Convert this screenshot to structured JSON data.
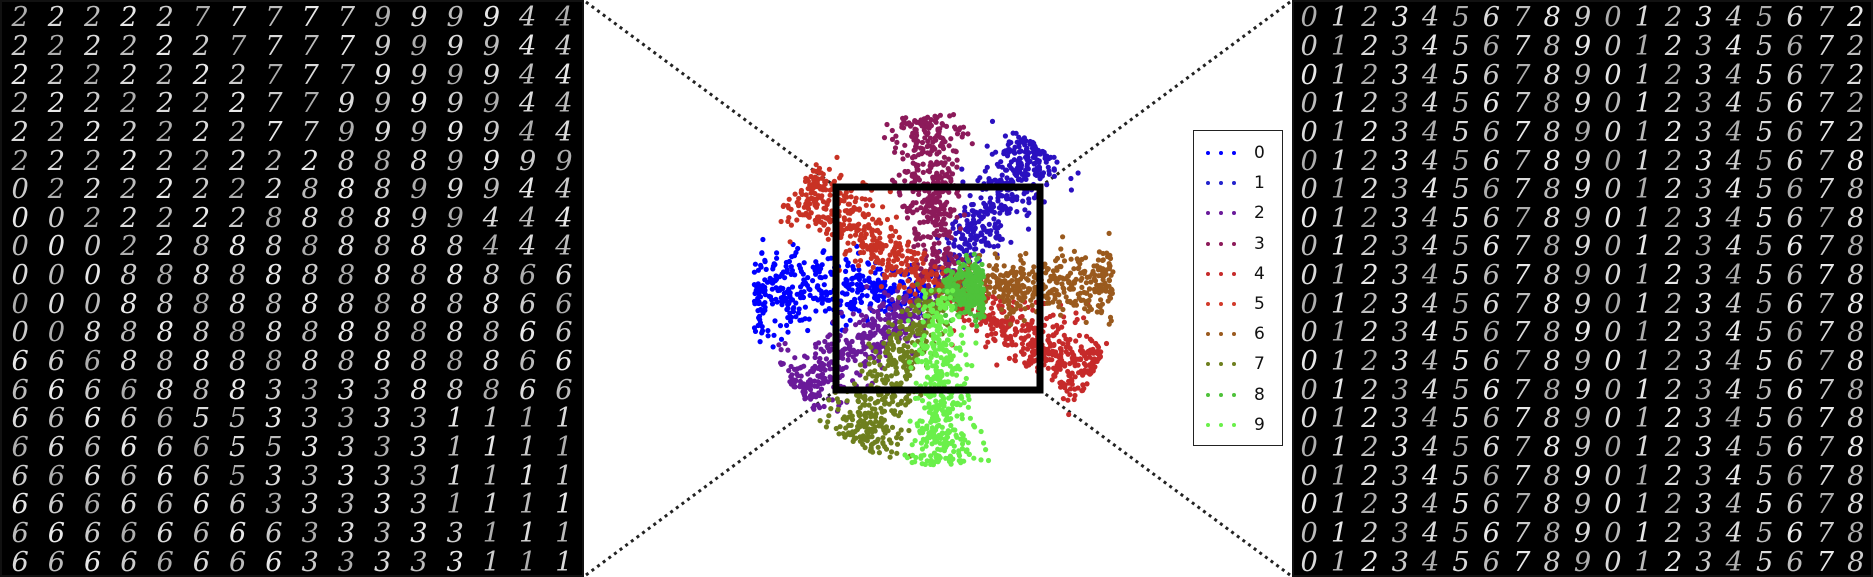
{
  "left_grid": {
    "rows": [
      "2222277777999944",
      "2222227777999944",
      "2222222777999944",
      "2222222779999944",
      "2222222779999944",
      "2222222228889999",
      "0222222288899944",
      "0022222888899444",
      "0002288888888444",
      "0008888888888866",
      "0008888888888866",
      "0088888888888866",
      "6668888888888866",
      "6666888333388866",
      "6666655333331111",
      "6666665533331111",
      "6666665333331111",
      "6666666333331111",
      "6666666633333111",
      "6666666633333111"
    ]
  },
  "right_grid": {
    "rows": [
      "0123456789012345672",
      "0123456789012345672",
      "0123456789012345672",
      "0123456789012345672",
      "0123456789012345672",
      "0123456789012345678",
      "0123456789012345678",
      "0123456789012345678",
      "0123456789012345678",
      "0123456789012345678",
      "0123456789012345678",
      "0123456789012345678",
      "0123456789012345678",
      "0123456789012345678",
      "0123456789012345678",
      "0123456789012345678",
      "0123456789012345678",
      "0123456789012345678",
      "0123456789012345678",
      "0123456789012345678"
    ]
  },
  "legend": {
    "items": [
      {
        "label": "0",
        "color": "#0000ff"
      },
      {
        "label": "1",
        "color": "#2222cc"
      },
      {
        "label": "2",
        "color": "#6a1a9a"
      },
      {
        "label": "3",
        "color": "#8c1a5a"
      },
      {
        "label": "4",
        "color": "#c62a2a"
      },
      {
        "label": "5",
        "color": "#d23a2a"
      },
      {
        "label": "6",
        "color": "#9a5a1e"
      },
      {
        "label": "7",
        "color": "#6e7f1e"
      },
      {
        "label": "8",
        "color": "#4ec23a"
      },
      {
        "label": "9",
        "color": "#6af04a"
      }
    ]
  },
  "clusters": [
    {
      "label": "0",
      "color": "#0000ff",
      "angle_deg": 180,
      "spread": 0.28
    },
    {
      "label": "1",
      "color": "#2a10c0",
      "angle_deg": 56,
      "spread": 0.18
    },
    {
      "label": "2",
      "color": "#6a1a9a",
      "angle_deg": 215,
      "spread": 0.18
    },
    {
      "label": "3",
      "color": "#8c1a5a",
      "angle_deg": 95,
      "spread": 0.18
    },
    {
      "label": "4",
      "color": "#c62a2a",
      "angle_deg": -28,
      "spread": 0.2
    },
    {
      "label": "5",
      "color": "#c83224",
      "angle_deg": 143,
      "spread": 0.2
    },
    {
      "label": "6",
      "color": "#9a5a1e",
      "angle_deg": 2,
      "spread": 0.18
    },
    {
      "label": "7",
      "color": "#6e7f1e",
      "angle_deg": 242,
      "spread": 0.2
    },
    {
      "label": "8",
      "color": "#4ec23a",
      "angle_deg": 0,
      "spread": 0.4
    },
    {
      "label": "9",
      "color": "#6af04a",
      "angle_deg": 272,
      "spread": 0.15
    }
  ]
}
